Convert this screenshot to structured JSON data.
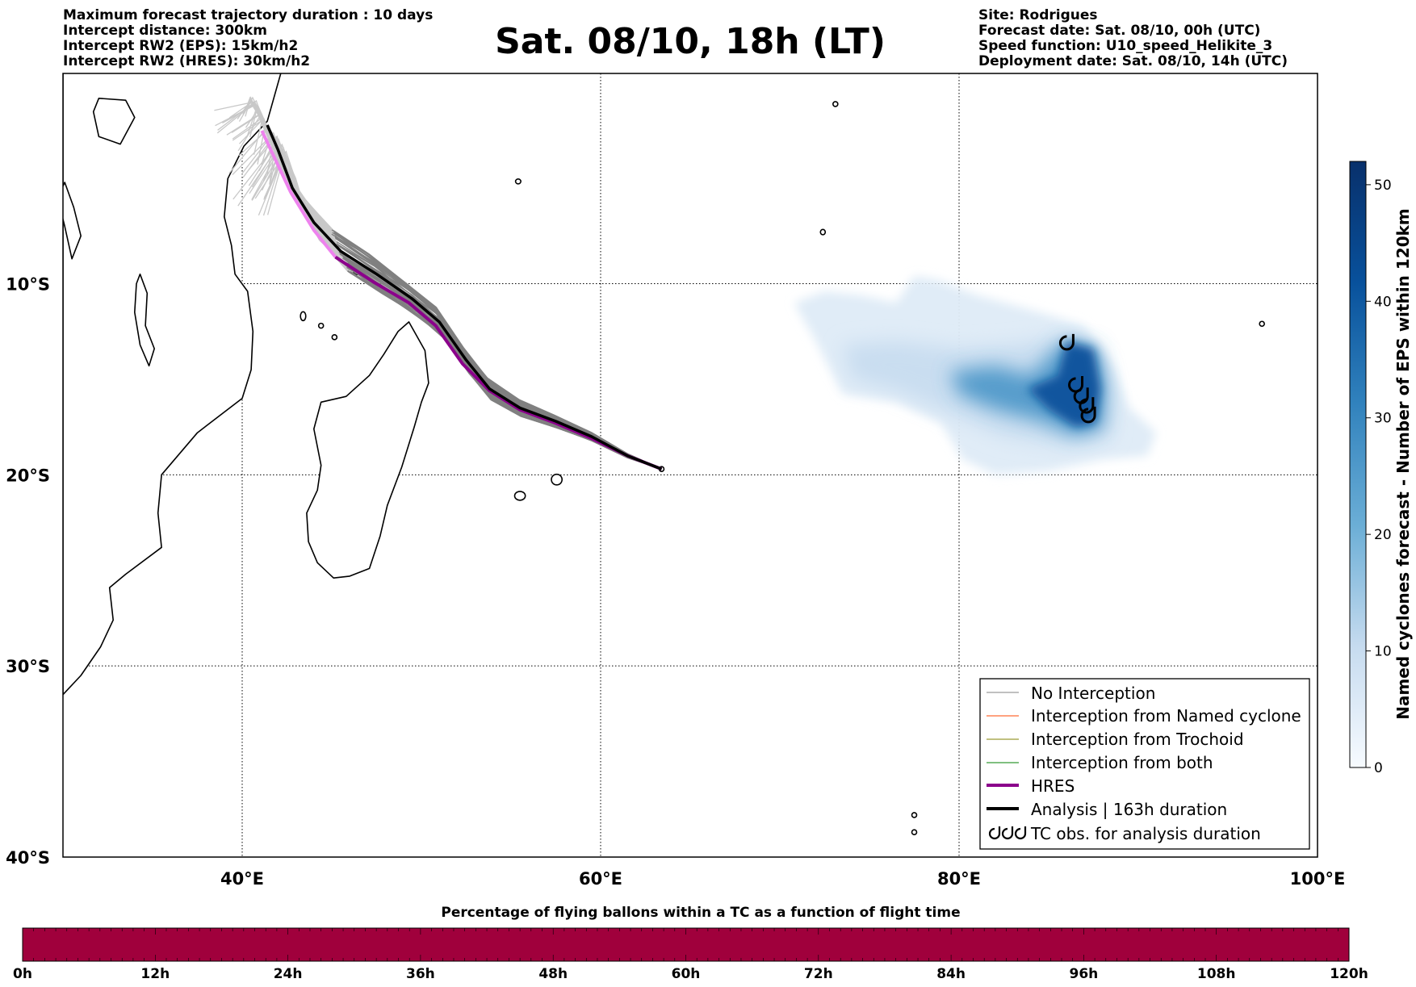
{
  "header": {
    "left_lines": [
      "Maximum forecast trajectory duration : 10 days",
      "Intercept distance: 300km",
      "Intercept RW2 (EPS):  15km/h2",
      "Intercept RW2 (HRES): 30km/h2"
    ],
    "title": "Sat. 08/10, 18h (LT)",
    "right_lines": [
      "Site: Rodrigues",
      "Forecast date: Sat. 08/10, 00h (UTC)",
      "Speed function: U10_speed_Helikite_3",
      "Deployment date: Sat. 08/10, 14h (UTC)"
    ]
  },
  "map": {
    "lon_range": [
      30,
      100
    ],
    "lat_range": [
      -40,
      1
    ],
    "lon_ticks": [
      {
        "value": 40,
        "label": "40°E"
      },
      {
        "value": 60,
        "label": "60°E"
      },
      {
        "value": 80,
        "label": "80°E"
      },
      {
        "value": 100,
        "label": "100°E"
      }
    ],
    "lat_ticks": [
      {
        "value": -10,
        "label": "10°S"
      },
      {
        "value": -20,
        "label": "20°S"
      },
      {
        "value": -30,
        "label": "30°S"
      },
      {
        "value": -40,
        "label": "40°S"
      }
    ],
    "colors": {
      "no_interception": "#808080",
      "named_cyclone": "#ff4500",
      "trochoid": "#808000",
      "both": "#008000",
      "hres": "#8b008b",
      "hres_start": "#ee82ee",
      "analysis": "#000000",
      "cyclone_light": "#deebf7",
      "cyclone_dark": "#08306b"
    },
    "origin": {
      "lon": 63.4,
      "lat": -19.7
    },
    "analysis_track": [
      [
        63.4,
        -19.7
      ],
      [
        61.5,
        -19.0
      ],
      [
        59.5,
        -18.0
      ],
      [
        57.5,
        -17.2
      ],
      [
        55.5,
        -16.5
      ],
      [
        53.8,
        -15.5
      ],
      [
        52.5,
        -14.0
      ],
      [
        51.0,
        -12.0
      ],
      [
        49.5,
        -10.8
      ],
      [
        47.5,
        -9.5
      ],
      [
        45.5,
        -8.3
      ],
      [
        44.0,
        -6.8
      ],
      [
        42.8,
        -5.0
      ],
      [
        42.0,
        -3.0
      ],
      [
        41.4,
        -1.7
      ]
    ],
    "hres_track": [
      [
        63.4,
        -19.7
      ],
      [
        61.5,
        -19.0
      ],
      [
        59.5,
        -18.1
      ],
      [
        57.5,
        -17.3
      ],
      [
        55.5,
        -16.6
      ],
      [
        53.8,
        -15.6
      ],
      [
        52.3,
        -14.2
      ],
      [
        50.8,
        -12.2
      ],
      [
        49.3,
        -11.0
      ],
      [
        47.3,
        -9.9
      ],
      [
        45.2,
        -8.6
      ],
      [
        44.0,
        -7.2
      ],
      [
        42.7,
        -5.2
      ],
      [
        41.7,
        -3.2
      ],
      [
        41.1,
        -2.0
      ]
    ],
    "cyclone_obs": [
      [
        86.1,
        -13.1
      ],
      [
        86.6,
        -15.3
      ],
      [
        86.9,
        -15.9
      ],
      [
        87.2,
        -16.4
      ],
      [
        87.3,
        -16.9
      ]
    ]
  },
  "cyclone_colorbar": {
    "min": 0,
    "max": 52,
    "ticks": [
      0,
      10,
      20,
      30,
      40,
      50
    ],
    "label": "Named cyclones forecast - Number of EPS within 120km"
  },
  "legend": {
    "items": [
      {
        "key": "no_interception",
        "label": "No Interception"
      },
      {
        "key": "named_cyclone",
        "label": "Interception from Named cyclone"
      },
      {
        "key": "trochoid",
        "label": "Interception from Trochoid"
      },
      {
        "key": "both",
        "label": "Interception from both"
      },
      {
        "key": "hres",
        "label": "HRES"
      },
      {
        "key": "analysis",
        "label": "Analysis | 163h duration"
      },
      {
        "key": "tc_obs",
        "label": "TC obs. for analysis duration"
      }
    ]
  },
  "timebar": {
    "title": "Percentage of flying ballons within a TC as a function of flight time",
    "ticks": [
      "0h",
      "12h",
      "24h",
      "36h",
      "48h",
      "60h",
      "72h",
      "84h",
      "96h",
      "108h",
      "120h"
    ],
    "fill_color": "#a0003c"
  }
}
